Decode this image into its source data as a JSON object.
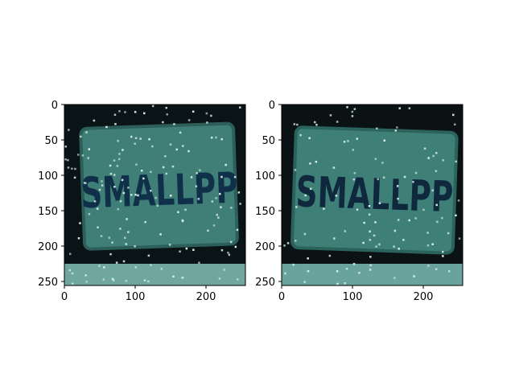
{
  "figure": {
    "panels": [
      {
        "plate_text": "SMALLPP",
        "image_extent": [
          0,
          256,
          256,
          0
        ],
        "xticks": [
          "0",
          "100",
          "200"
        ],
        "yticks": [
          "0",
          "50",
          "100",
          "150",
          "200",
          "250"
        ],
        "palette": {
          "background": "#0a1416",
          "plate": "#3f7f78",
          "plate_edge": "#2c5f5a",
          "ink": "#10304a",
          "noise": "#d9f0ea",
          "bottom_strip": "#6fa6a0"
        }
      },
      {
        "plate_text": "SMALLPP",
        "image_extent": [
          0,
          256,
          256,
          0
        ],
        "xticks": [
          "0",
          "100",
          "200"
        ],
        "yticks": [
          "0",
          "50",
          "100",
          "150",
          "200",
          "250"
        ],
        "palette": {
          "background": "#0a1214",
          "plate": "#3e8077",
          "plate_edge": "#2b625b",
          "ink": "#10283e",
          "noise": "#d9f0ea",
          "bottom_strip": "#6aa39d"
        }
      }
    ]
  }
}
